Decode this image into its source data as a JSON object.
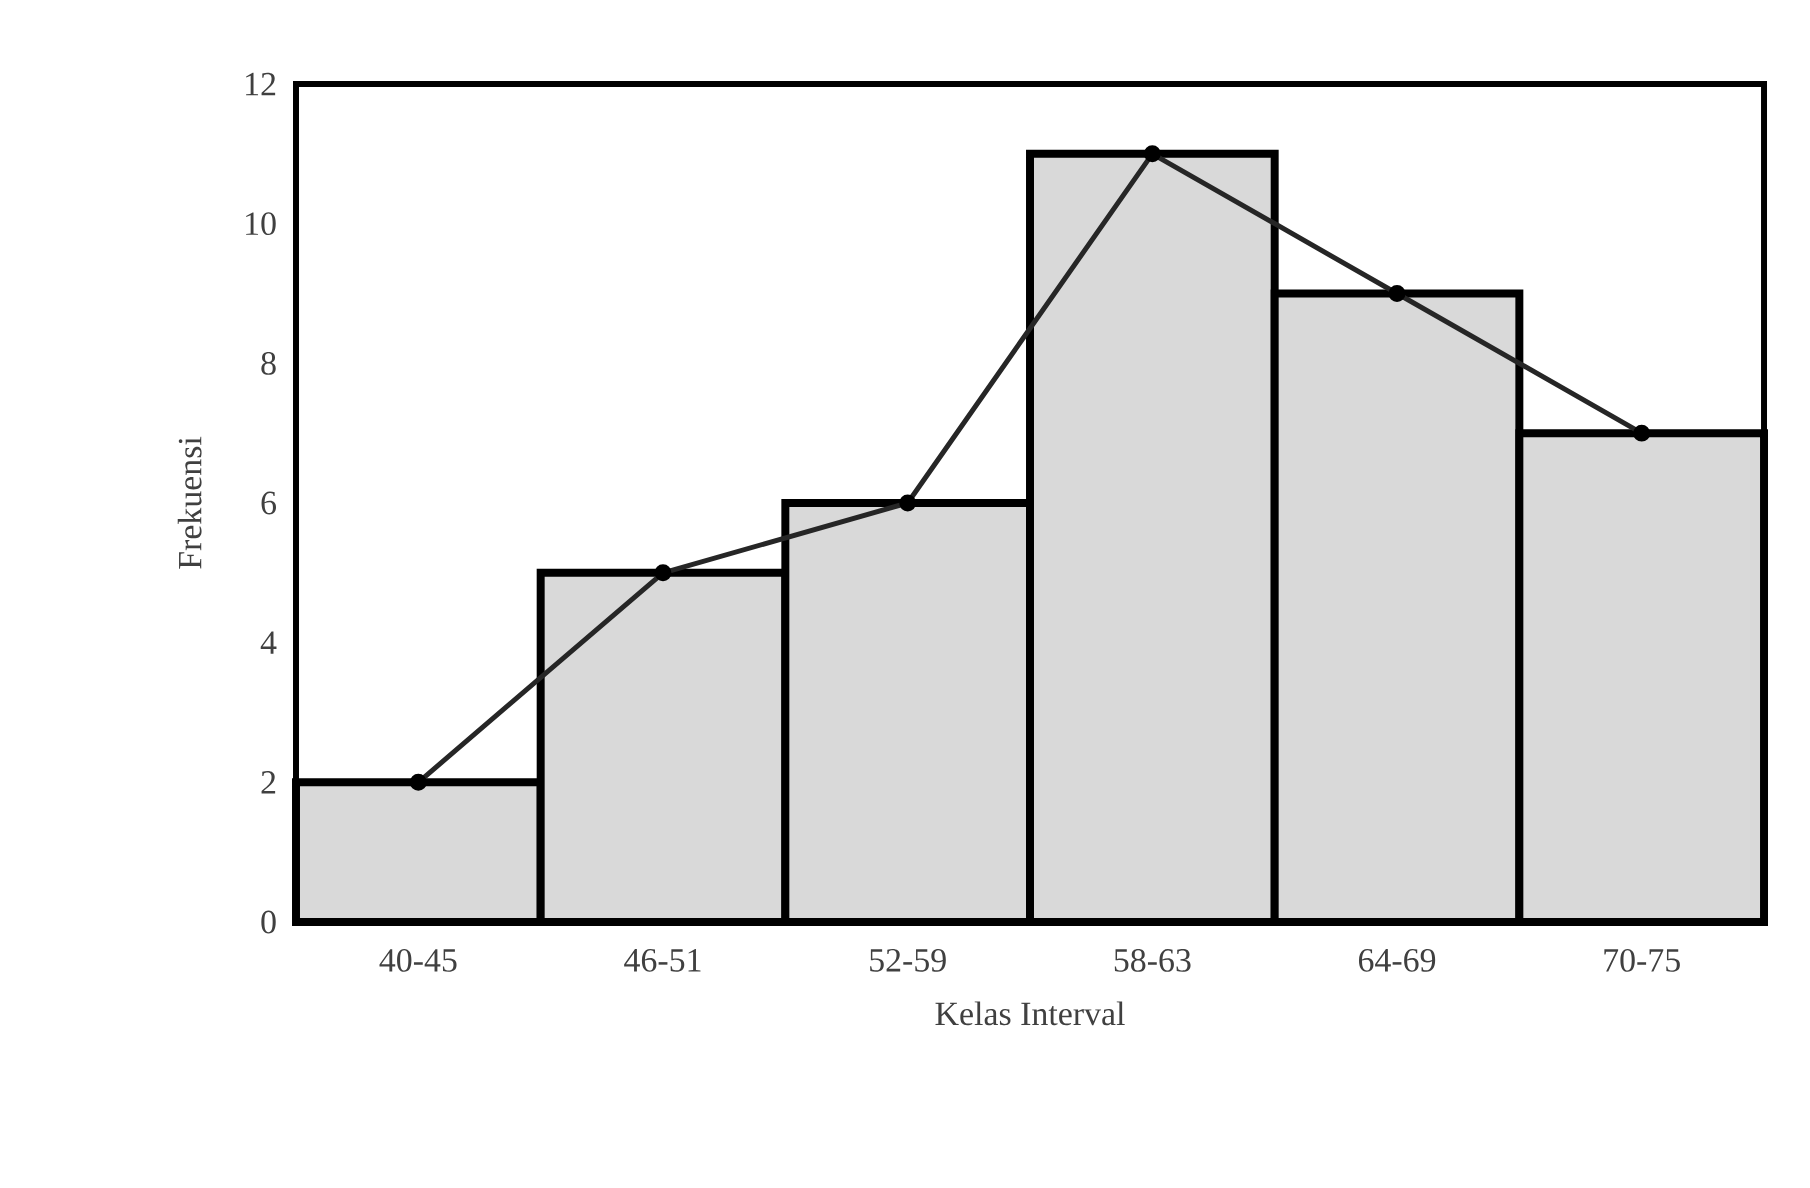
{
  "chart_data": {
    "type": "bar",
    "xlabel": "Kelas Interval",
    "ylabel": "Frekuensi",
    "categories": [
      "40-45",
      "46-51",
      "52-59",
      "58-63",
      "64-69",
      "70-75"
    ],
    "series": [
      {
        "color": "#d9d9d9",
        "values": [
          2,
          5,
          6,
          11,
          9,
          7
        ]
      },
      {
        "type": "line",
        "color": "#262626",
        "marker": "circle",
        "values": [
          2,
          5,
          6,
          11,
          9,
          7
        ]
      }
    ],
    "ylim": [
      0,
      12
    ],
    "yticks": [
      0,
      2,
      4,
      6,
      8,
      10,
      12
    ],
    "grid": false
  }
}
